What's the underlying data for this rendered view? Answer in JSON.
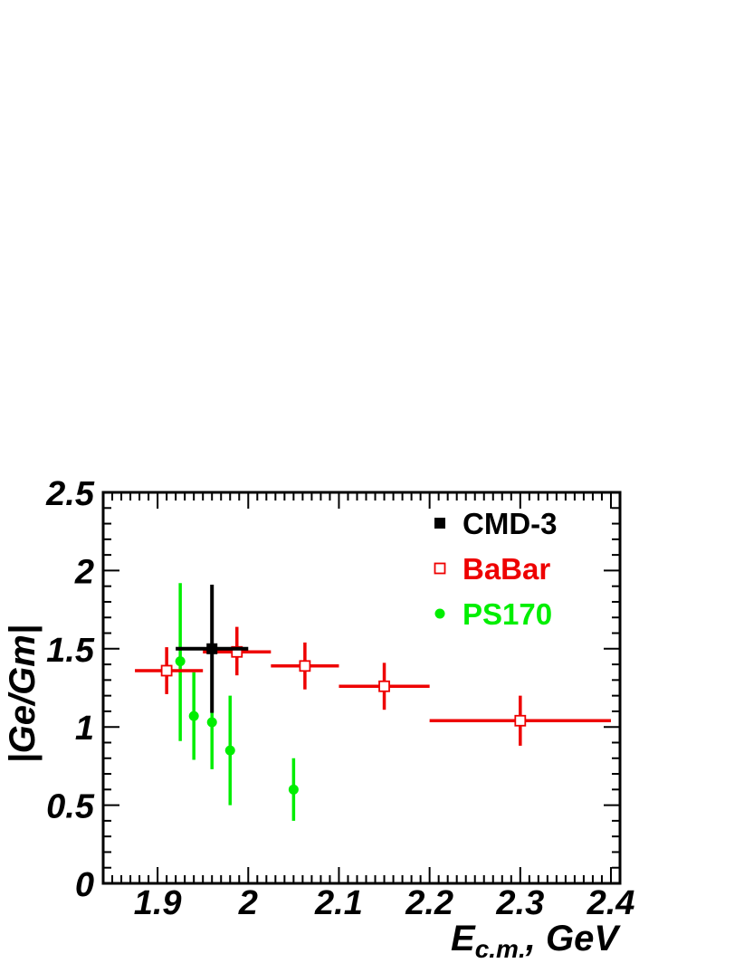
{
  "chart_data": {
    "type": "scatter",
    "xlabel_main": "E",
    "xlabel_sub": "c.m.",
    "xlabel_unit": ", GeV",
    "ylabel": "|Ge/Gm|",
    "xlim": [
      1.84,
      2.41
    ],
    "ylim": [
      0,
      2.5
    ],
    "x_ticks": [
      1.9,
      2.0,
      2.1,
      2.2,
      2.3,
      2.4
    ],
    "x_tick_labels": [
      "1.9",
      "2",
      "2.1",
      "2.2",
      "2.3",
      "2.4"
    ],
    "y_ticks": [
      0,
      0.5,
      1.0,
      1.5,
      2.0,
      2.5
    ],
    "y_tick_labels": [
      "0",
      "0.5",
      "1",
      "1.5",
      "2",
      "2.5"
    ],
    "grid": false,
    "legend_position": "top-right",
    "series": [
      {
        "name": "CMD-3",
        "color": "#000000",
        "marker": "filled-square",
        "points": [
          {
            "x": 1.96,
            "y": 1.5,
            "xlo": 1.92,
            "xhi": 2.0,
            "ylo": 1.09,
            "yhi": 1.91
          }
        ]
      },
      {
        "name": "BaBar",
        "color": "#ee0000",
        "marker": "open-square",
        "points": [
          {
            "x": 1.91,
            "y": 1.36,
            "xlo": 1.875,
            "xhi": 1.95,
            "ylo": 1.21,
            "yhi": 1.51
          },
          {
            "x": 1.9875,
            "y": 1.48,
            "xlo": 1.95,
            "xhi": 2.025,
            "ylo": 1.33,
            "yhi": 1.64
          },
          {
            "x": 2.0625,
            "y": 1.39,
            "xlo": 2.025,
            "xhi": 2.1,
            "ylo": 1.24,
            "yhi": 1.54
          },
          {
            "x": 2.15,
            "y": 1.26,
            "xlo": 2.1,
            "xhi": 2.2,
            "ylo": 1.11,
            "yhi": 1.41
          },
          {
            "x": 2.3,
            "y": 1.04,
            "xlo": 2.2,
            "xhi": 2.4,
            "ylo": 0.88,
            "yhi": 1.2
          }
        ]
      },
      {
        "name": "PS170",
        "color": "#00ee00",
        "marker": "filled-circle",
        "points": [
          {
            "x": 1.925,
            "y": 1.42,
            "ylo": 0.91,
            "yhi": 1.92
          },
          {
            "x": 1.94,
            "y": 1.07,
            "ylo": 0.79,
            "yhi": 1.35
          },
          {
            "x": 1.96,
            "y": 1.03,
            "ylo": 0.73,
            "yhi": 1.33
          },
          {
            "x": 1.98,
            "y": 0.85,
            "ylo": 0.5,
            "yhi": 1.2
          },
          {
            "x": 2.05,
            "y": 0.6,
            "ylo": 0.4,
            "yhi": 0.8
          }
        ]
      }
    ]
  }
}
